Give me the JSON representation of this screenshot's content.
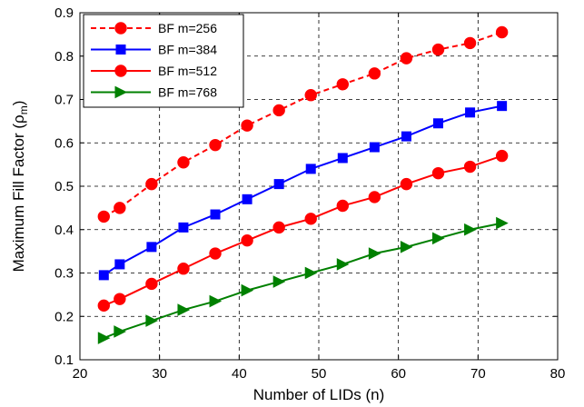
{
  "chart_data": {
    "type": "line",
    "xlabel": "Number of LIDs (n)",
    "ylabel": "Maximum Fill Factor (ρ",
    "ylabel_subscript": "m",
    "ylabel_close": ")",
    "xlim": [
      20,
      80
    ],
    "ylim": [
      0.1,
      0.9
    ],
    "xticks": [
      20,
      30,
      40,
      50,
      60,
      70,
      80
    ],
    "yticks": [
      0.1,
      0.2,
      0.3,
      0.4,
      0.5,
      0.6,
      0.7,
      0.8,
      0.9
    ],
    "xtick_labels": [
      "20",
      "30",
      "40",
      "50",
      "60",
      "70",
      "80"
    ],
    "ytick_labels": [
      "0.1",
      "0.2",
      "0.3",
      "0.4",
      "0.5",
      "0.6",
      "0.7",
      "0.8",
      "0.9"
    ],
    "grid": true,
    "legend_position": "top-left",
    "x": [
      23,
      25,
      29,
      33,
      37,
      41,
      45,
      49,
      53,
      57,
      61,
      65,
      69,
      73
    ],
    "series": [
      {
        "name": "BF m=256",
        "color": "#ff0000",
        "line_style": "dashed",
        "marker": "circle",
        "values": [
          0.43,
          0.45,
          0.505,
          0.555,
          0.595,
          0.64,
          0.675,
          0.71,
          0.735,
          0.76,
          0.795,
          0.815,
          0.83,
          0.855
        ]
      },
      {
        "name": "BF m=384",
        "color": "#0000ff",
        "line_style": "solid",
        "marker": "square",
        "values": [
          0.295,
          0.32,
          0.36,
          0.405,
          0.435,
          0.47,
          0.505,
          0.54,
          0.565,
          0.59,
          0.615,
          0.645,
          0.67,
          0.685
        ]
      },
      {
        "name": "BF m=512",
        "color": "#ff0000",
        "line_style": "solid",
        "marker": "circle",
        "values": [
          0.225,
          0.24,
          0.275,
          0.31,
          0.345,
          0.375,
          0.405,
          0.425,
          0.455,
          0.475,
          0.505,
          0.53,
          0.545,
          0.57
        ]
      },
      {
        "name": "BF m=768",
        "color": "#008000",
        "line_style": "solid",
        "marker": "triangle-right",
        "values": [
          0.15,
          0.165,
          0.19,
          0.215,
          0.235,
          0.26,
          0.28,
          0.3,
          0.32,
          0.345,
          0.36,
          0.38,
          0.4,
          0.415
        ]
      }
    ]
  }
}
